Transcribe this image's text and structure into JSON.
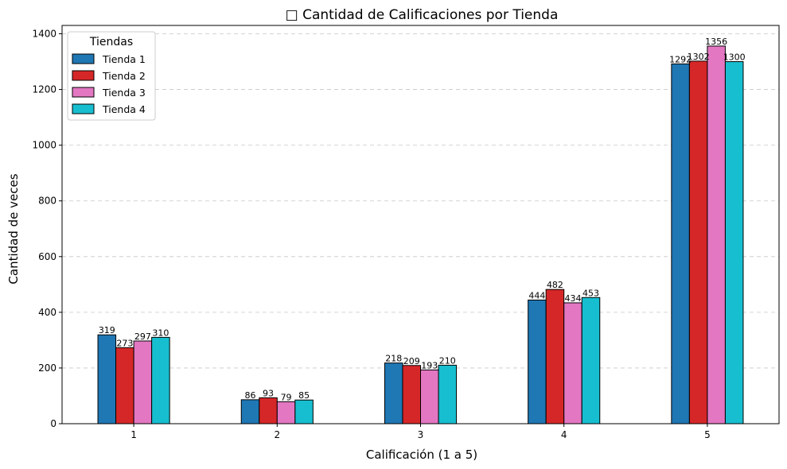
{
  "chart_data": {
    "type": "bar",
    "title": "□ Cantidad de Calificaciones por Tienda",
    "xlabel": "Calificación (1 a 5)",
    "ylabel": "Cantidad de veces",
    "categories": [
      "1",
      "2",
      "3",
      "4",
      "5"
    ],
    "ylim": [
      0,
      1430
    ],
    "yticks": [
      0,
      200,
      400,
      600,
      800,
      1000,
      1200,
      1400
    ],
    "grid": "y-dashed",
    "legend": {
      "title": "Tiendas",
      "placement": "top-left"
    },
    "series": [
      {
        "name": "Tienda 1",
        "color": "#1f77b4",
        "values": [
          319,
          86,
          218,
          444,
          1292
        ]
      },
      {
        "name": "Tienda 2",
        "color": "#d62728",
        "values": [
          273,
          93,
          209,
          482,
          1302
        ]
      },
      {
        "name": "Tienda 3",
        "color": "#e377c2",
        "values": [
          297,
          79,
          193,
          434,
          1356
        ]
      },
      {
        "name": "Tienda 4",
        "color": "#17becf",
        "values": [
          310,
          85,
          210,
          453,
          1300
        ]
      }
    ]
  }
}
